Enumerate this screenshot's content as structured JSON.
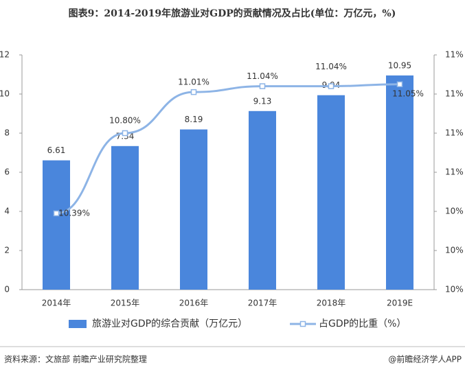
{
  "chart_data": {
    "type": "bar_line",
    "title": "图表9：2014-2019年旅游业对GDP的贡献情况及占比(单位：万亿元，%)",
    "categories": [
      "2014年",
      "2015年",
      "2016年",
      "2017年",
      "2018年",
      "2019E"
    ],
    "series": [
      {
        "name": "旅游业对GDP的综合贡献（万亿元）",
        "type": "bar",
        "color": "#4a86dc",
        "values": [
          6.61,
          7.34,
          8.19,
          9.13,
          9.94,
          10.95
        ]
      },
      {
        "name": "占GDP的比重（%）",
        "type": "line",
        "axis": "y2",
        "color": "#8db4e6",
        "values": [
          10.39,
          10.8,
          11.01,
          11.04,
          11.04,
          11.05
        ],
        "value_labels": [
          "10.39%",
          "10.80%",
          "11.01%",
          "11.04%",
          "11.04%",
          "11.05%"
        ]
      }
    ],
    "ylim": [
      0,
      12
    ],
    "yticks": [
      0,
      2,
      4,
      6,
      8,
      10,
      12
    ],
    "y2lim": [
      10,
      11.2
    ],
    "y2ticks": [
      {
        "value": 10.0,
        "label": "10%"
      },
      {
        "value": 10.2,
        "label": "10%"
      },
      {
        "value": 10.4,
        "label": "10%"
      },
      {
        "value": 10.6,
        "label": "11%"
      },
      {
        "value": 10.8,
        "label": "11%"
      },
      {
        "value": 11.0,
        "label": "11%"
      },
      {
        "value": 11.2,
        "label": "11%"
      }
    ],
    "legend": "bottom",
    "source": "资料来源：文旅部 前瞻产业研究院整理",
    "credit": "@前瞻经济学人APP"
  }
}
